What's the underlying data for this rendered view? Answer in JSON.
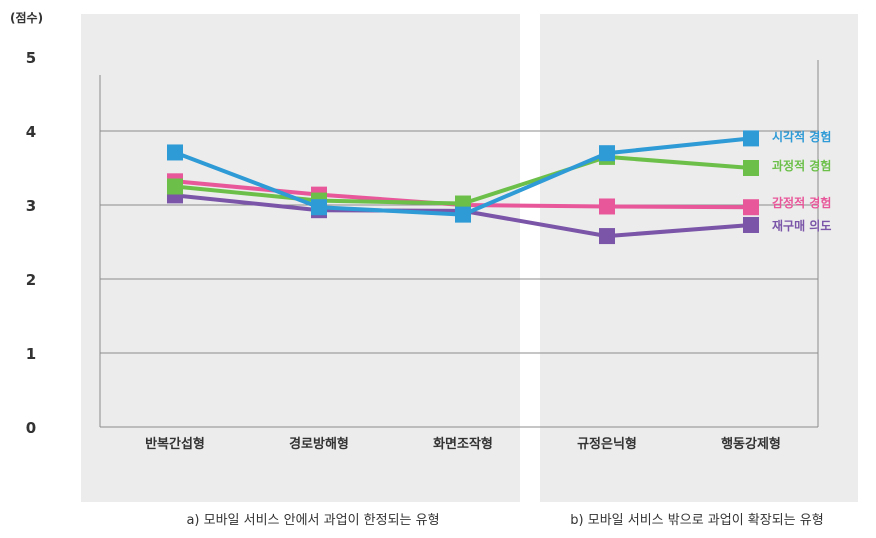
{
  "chart_data": {
    "type": "line",
    "ylabel": "(점수)",
    "ylim": [
      0,
      5
    ],
    "yticks": [
      0,
      1,
      2,
      3,
      4,
      5
    ],
    "grid": true,
    "categories": [
      "반복간섭형",
      "경로방해형",
      "화면조작형",
      "규정은닉형",
      "행동강제형"
    ],
    "panels": [
      {
        "caption": "a) 모바일 서비스 안에서 과업이 한정되는 유형",
        "categories": [
          "반복간섭형",
          "경로방해형",
          "화면조작형"
        ]
      },
      {
        "caption": "b) 모바일 서비스 밖으로 과업이 확장되는 유형",
        "categories": [
          "규정은닉형",
          "행동강제형"
        ]
      }
    ],
    "legend_position": "right",
    "series": [
      {
        "name": "감정적 경험",
        "color": "#e8579a",
        "values": [
          3.32,
          3.14,
          3.0,
          2.98,
          2.97
        ]
      },
      {
        "name": "재구매 의도",
        "color": "#7a55a8",
        "values": [
          3.13,
          2.93,
          2.92,
          2.58,
          2.73
        ]
      },
      {
        "name": "과정적 경험",
        "color": "#6cc04a",
        "values": [
          3.25,
          3.06,
          3.02,
          3.65,
          3.5
        ]
      },
      {
        "name": "시각적 경험",
        "color": "#2e9ad6",
        "values": [
          3.71,
          2.97,
          2.87,
          3.7,
          3.9
        ]
      }
    ]
  }
}
